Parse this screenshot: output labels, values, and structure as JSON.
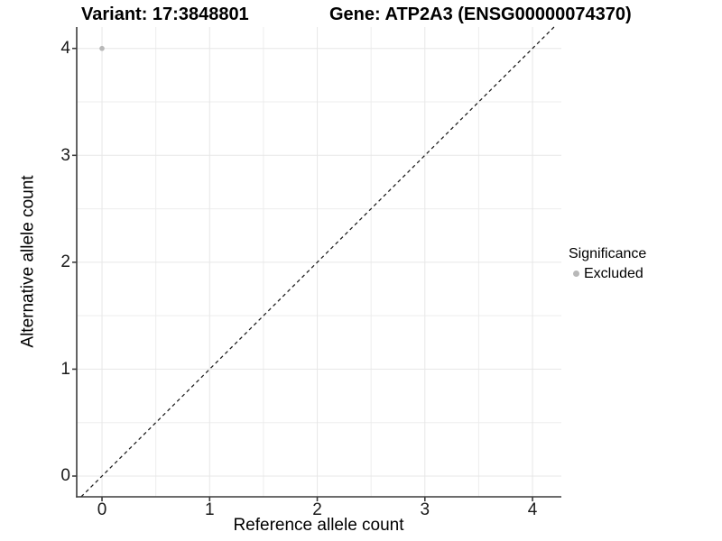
{
  "chart_data": {
    "type": "scatter",
    "titles": {
      "left": "Variant: 17:3848801",
      "right": "Gene: ATP2A3 (ENSG00000074370)"
    },
    "xlabel": "Reference allele count",
    "ylabel": "Alternative allele count",
    "xlim": [
      -0.235,
      4.268
    ],
    "ylim": [
      -0.194,
      4.2
    ],
    "x_ticks": [
      0,
      1,
      2,
      3,
      4
    ],
    "y_ticks": [
      0,
      1,
      2,
      3,
      4
    ],
    "x_minor": [
      0.5,
      1.5,
      2.5,
      3.5
    ],
    "y_minor": [
      0.5,
      1.5,
      2.5,
      3.5
    ],
    "grid": true,
    "identity_line": {
      "type": "abline",
      "slope": 1,
      "intercept": 0,
      "style": "dashed",
      "color": "#1a1a1a"
    },
    "points": [
      {
        "x": 0,
        "y": 4,
        "series": "Excluded"
      }
    ],
    "legend": {
      "title": "Significance",
      "position": "right",
      "entries": [
        {
          "label": "Excluded",
          "color": "#b8b8b8"
        }
      ]
    },
    "colors": {
      "point": "#b8b8b8",
      "grid_major": "#e7e7e7",
      "grid_minor": "#ededed",
      "axis_line": "#3c3c3c",
      "tick": "#3c3c3c",
      "text": "#000000",
      "background": "#ffffff"
    }
  }
}
